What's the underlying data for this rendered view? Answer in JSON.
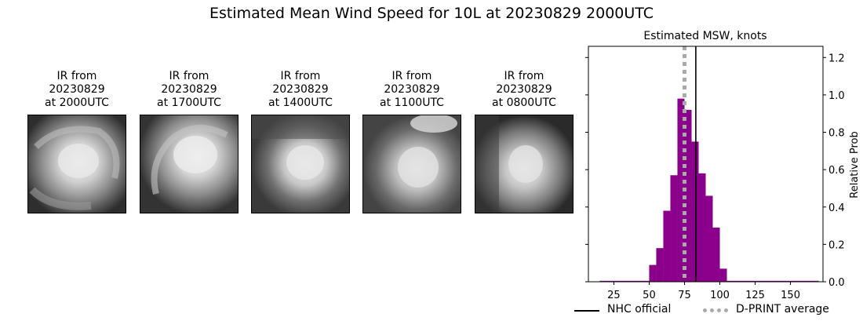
{
  "suptitle": "Estimated Mean Wind Speed for 10L at 20230829 2000UTC",
  "ir_panels": [
    {
      "line1": "IR from",
      "line2": "20230829",
      "line3": "at 2000UTC",
      "icon": "satellite-ir-image"
    },
    {
      "line1": "IR from",
      "line2": "20230829",
      "line3": "at 1700UTC",
      "icon": "satellite-ir-image"
    },
    {
      "line1": "IR from",
      "line2": "20230829",
      "line3": "at 1400UTC",
      "icon": "satellite-ir-image"
    },
    {
      "line1": "IR from",
      "line2": "20230829",
      "line3": "at 1100UTC",
      "icon": "satellite-ir-image"
    },
    {
      "line1": "IR from",
      "line2": "20230829",
      "line3": "at 0800UTC",
      "icon": "satellite-ir-image"
    }
  ],
  "chart_data": {
    "type": "bar",
    "title": "Estimated MSW, knots",
    "xlabel": "",
    "ylabel": "Relative Prob",
    "xlim": [
      7,
      173
    ],
    "ylim": [
      0,
      1.26
    ],
    "xticks": [
      25,
      50,
      75,
      100,
      125,
      150
    ],
    "yticks": [
      0.0,
      0.2,
      0.4,
      0.6,
      0.8,
      1.0,
      1.2
    ],
    "ytick_labels": [
      "0.0",
      "0.2",
      "0.4",
      "0.6",
      "0.8",
      "1.0",
      "1.2"
    ],
    "yaxis_side": "right",
    "bin_width": 5,
    "bins": [
      {
        "x0": 15,
        "value": 0.005
      },
      {
        "x0": 20,
        "value": 0.005
      },
      {
        "x0": 25,
        "value": 0.005
      },
      {
        "x0": 30,
        "value": 0.005
      },
      {
        "x0": 35,
        "value": 0.005
      },
      {
        "x0": 40,
        "value": 0.005
      },
      {
        "x0": 45,
        "value": 0.005
      },
      {
        "x0": 50,
        "value": 0.09
      },
      {
        "x0": 55,
        "value": 0.18
      },
      {
        "x0": 60,
        "value": 0.38
      },
      {
        "x0": 65,
        "value": 0.57
      },
      {
        "x0": 70,
        "value": 0.98
      },
      {
        "x0": 75,
        "value": 0.92
      },
      {
        "x0": 80,
        "value": 0.75
      },
      {
        "x0": 85,
        "value": 0.58
      },
      {
        "x0": 90,
        "value": 0.46
      },
      {
        "x0": 95,
        "value": 0.29
      },
      {
        "x0": 100,
        "value": 0.07
      },
      {
        "x0": 105,
        "value": 0.005
      },
      {
        "x0": 110,
        "value": 0.005
      },
      {
        "x0": 115,
        "value": 0.005
      },
      {
        "x0": 120,
        "value": 0.005
      },
      {
        "x0": 125,
        "value": 0.005
      },
      {
        "x0": 130,
        "value": 0.005
      },
      {
        "x0": 135,
        "value": 0.005
      },
      {
        "x0": 140,
        "value": 0.005
      },
      {
        "x0": 145,
        "value": 0.005
      },
      {
        "x0": 150,
        "value": 0.005
      },
      {
        "x0": 155,
        "value": 0.005
      },
      {
        "x0": 160,
        "value": 0.005
      },
      {
        "x0": 165,
        "value": 0.005
      }
    ],
    "bar_color": "#8b008b",
    "lines": [
      {
        "name": "NHC official",
        "x": 83,
        "color": "#000000",
        "style": "solid"
      },
      {
        "name": "D-PRINT average",
        "x": 75,
        "color": "#aaaaaa",
        "style": "dotted"
      }
    ],
    "legend_placement": "bottom"
  }
}
